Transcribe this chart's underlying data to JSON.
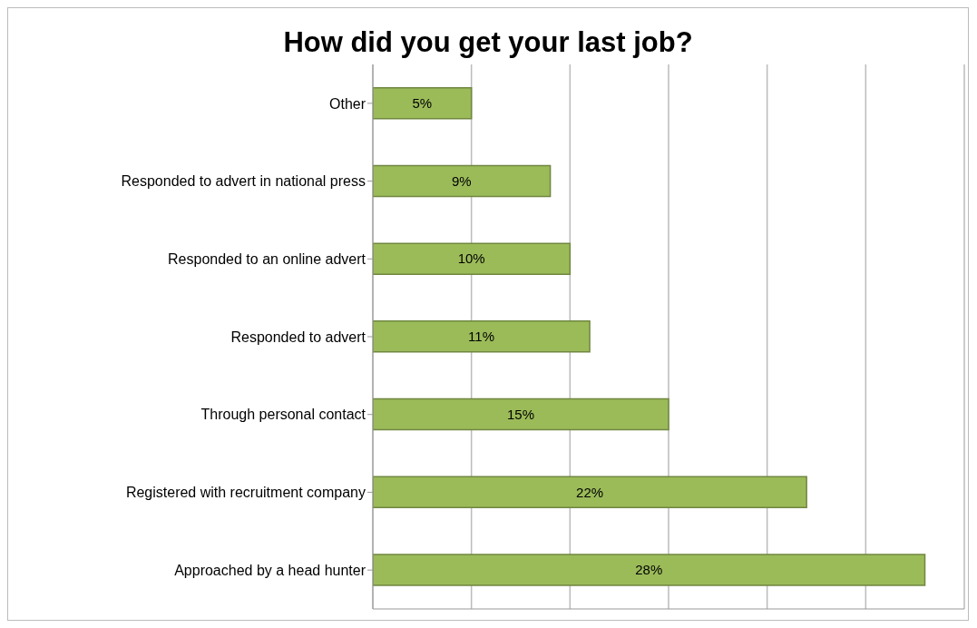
{
  "chart_data": {
    "type": "bar",
    "orientation": "horizontal",
    "title": "How did you get your last job?",
    "categories": [
      "Other",
      "Responded to advert in national press",
      "Responded to an online advert",
      "Responded to advert",
      "Through personal contact",
      "Registered with recruitment company",
      "Approached by a head hunter"
    ],
    "values": [
      5,
      9,
      10,
      11,
      15,
      22,
      28
    ],
    "value_labels": [
      "5%",
      "9%",
      "10%",
      "11%",
      "15%",
      "22%",
      "28%"
    ],
    "color": "#9bbb59",
    "grid": "x",
    "tick_labels": "y"
  }
}
